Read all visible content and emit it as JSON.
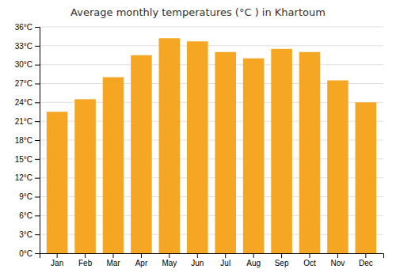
{
  "chart_data": {
    "type": "bar",
    "title": "Average monthly temperatures (°C ) in Khartoum",
    "categories": [
      "Jan",
      "Feb",
      "Mar",
      "Apr",
      "May",
      "Jun",
      "Jul",
      "Aug",
      "Sep",
      "Oct",
      "Nov",
      "Dec"
    ],
    "values": [
      22.5,
      24.5,
      28.0,
      31.5,
      34.2,
      33.7,
      32.0,
      31.0,
      32.5,
      32.0,
      27.5,
      24.0
    ],
    "color": "#F5A623",
    "ylim": [
      0,
      36
    ],
    "yticks": [
      {
        "value": 0,
        "label": "0°C"
      },
      {
        "value": 3,
        "label": "3°C"
      },
      {
        "value": 6,
        "label": "6°C"
      },
      {
        "value": 9,
        "label": "9°C"
      },
      {
        "value": 12,
        "label": "12°C"
      },
      {
        "value": 15,
        "label": "15°C"
      },
      {
        "value": 18,
        "label": "18°C"
      },
      {
        "value": 21,
        "label": "21°C"
      },
      {
        "value": 24,
        "label": "24°C"
      },
      {
        "value": 27,
        "label": "27°C"
      },
      {
        "value": 30,
        "label": "30°C"
      },
      {
        "value": 33,
        "label": "33°C"
      },
      {
        "value": 36,
        "label": "36°C"
      }
    ],
    "grid": true
  }
}
